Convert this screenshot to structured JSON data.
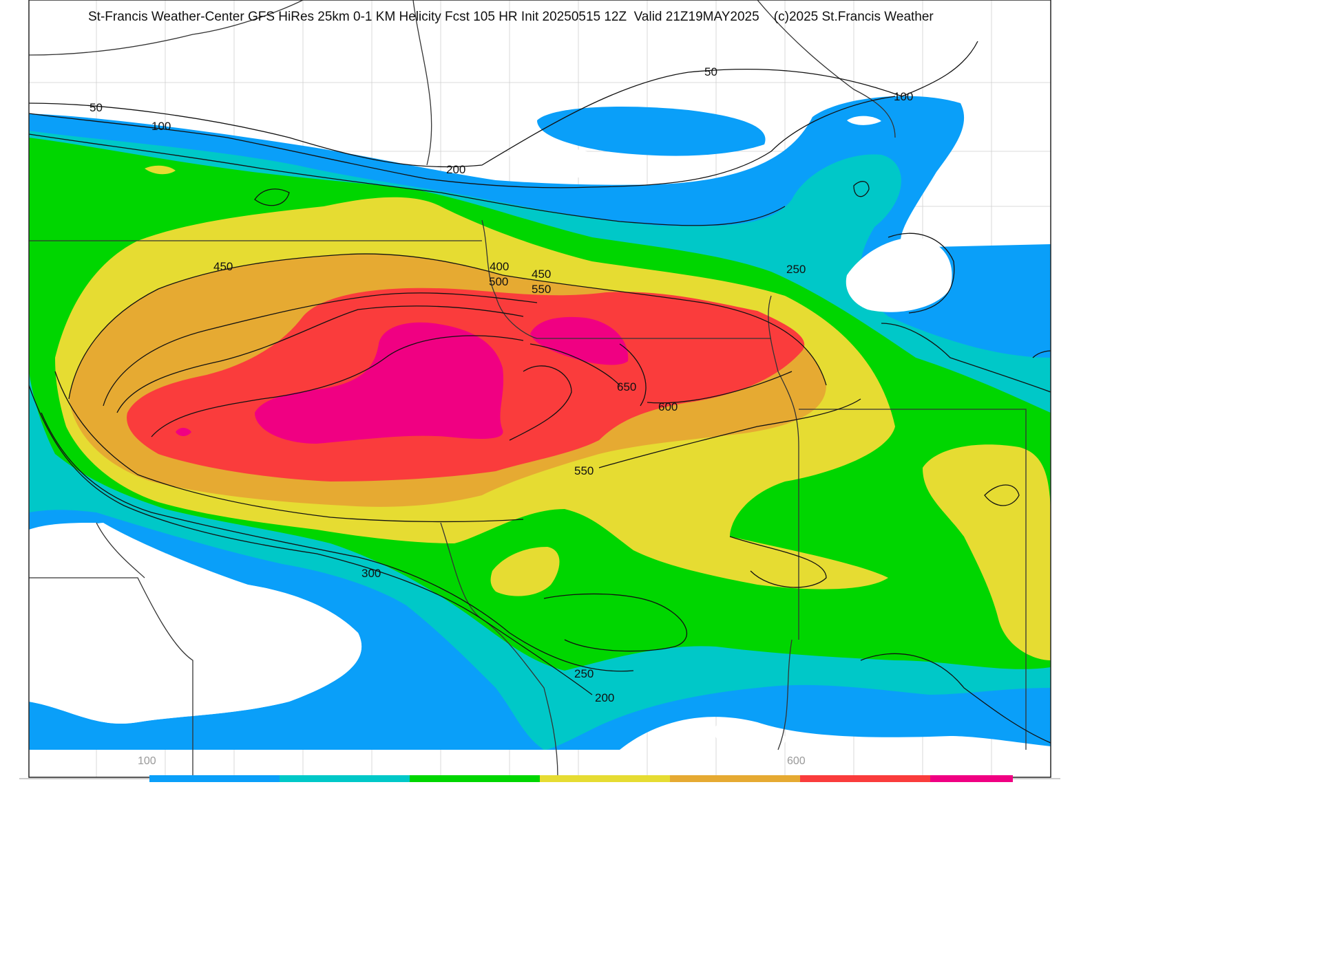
{
  "title": "St-Francis Weather-Center GFS HiRes 25km 0-1 KM Helicity Fcst 105 HR Init 20250515 12Z  Valid 21Z19MAY2025    (c)2025 St.Francis Weather",
  "colors": {
    "band_100": "#0a9ff9",
    "band_200": "#00c8c8",
    "band_300": "#00d600",
    "band_400": "#e6dc32",
    "band_500": "#e6aa32",
    "band_550": "#fa3c3c",
    "band_650": "#f00082",
    "contour": "#111111",
    "borders": "#bbbbbb"
  },
  "colorbar": {
    "labels": [
      "100",
      "600"
    ],
    "colors": [
      "#0a9ff9",
      "#00c8c8",
      "#00d600",
      "#e6dc32",
      "#e6aa32",
      "#fa3c3c",
      "#f00082"
    ]
  },
  "contour_labels": [
    "50",
    "100",
    "50",
    "100",
    "200",
    "450",
    "400",
    "450",
    "500",
    "550",
    "250",
    "650",
    "600",
    "550",
    "300",
    "250",
    "200"
  ]
}
